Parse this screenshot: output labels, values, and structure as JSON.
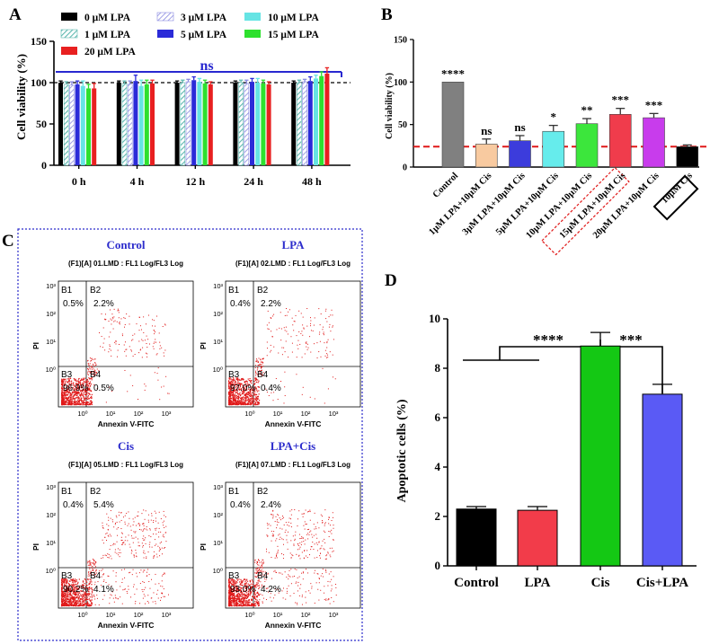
{
  "panels": {
    "A": {
      "letter": "A",
      "chart_data": {
        "type": "bar",
        "ylabel": "Cell viability (%)",
        "ylim": [
          0,
          150
        ],
        "yticks": [
          0,
          50,
          100,
          150
        ],
        "categories": [
          "0 h",
          "4 h",
          "12 h",
          "24 h",
          "48 h"
        ],
        "annotation": "ns",
        "reference_line": 100,
        "series": [
          {
            "name": "0 μM LPA",
            "color": "#000000",
            "pattern": "solid",
            "values": [
              100,
              100,
              100,
              100,
              100
            ],
            "errors": [
              2,
              2,
              2,
              2,
              2
            ]
          },
          {
            "name": "1 μM LPA",
            "color": "#5fb8b0",
            "pattern": "hatch",
            "values": [
              98,
              99,
              100,
              100,
              100
            ],
            "errors": [
              3,
              3,
              3,
              3,
              3
            ]
          },
          {
            "name": "3 μM LPA",
            "color": "#8a8ae0",
            "pattern": "hatch",
            "values": [
              97,
              98,
              101,
              99,
              101
            ],
            "errors": [
              4,
              4,
              3,
              4,
              3
            ]
          },
          {
            "name": "5 μM LPA",
            "color": "#2b2bd8",
            "pattern": "solid",
            "values": [
              98,
              102,
              103,
              101,
              102
            ],
            "errors": [
              4,
              7,
              4,
              4,
              5
            ]
          },
          {
            "name": "10 μM LPA",
            "color": "#66e4e4",
            "pattern": "solid",
            "values": [
              96,
              96,
              101,
              100,
              105
            ],
            "errors": [
              6,
              7,
              4,
              5,
              4
            ]
          },
          {
            "name": "15 μM LPA",
            "color": "#2ee02e",
            "pattern": "solid",
            "values": [
              93,
              98,
              99,
              99,
              108
            ],
            "errors": [
              5,
              5,
              4,
              4,
              5
            ]
          },
          {
            "name": "20 μM LPA",
            "color": "#e82020",
            "pattern": "solid",
            "values": [
              93,
              99,
              98,
              98,
              111
            ],
            "errors": [
              6,
              4,
              3,
              3,
              7
            ]
          }
        ]
      }
    },
    "B": {
      "letter": "B",
      "chart_data": {
        "type": "bar",
        "ylabel": "Cell viability (%)",
        "ylim": [
          0,
          150
        ],
        "yticks": [
          0,
          50,
          100,
          150
        ],
        "reference_line": 24,
        "categories": [
          "Control",
          "1μM LPA+10μM Cis",
          "3μM LPA+10μM Cis",
          "5μM LPA+10μM Cis",
          "10μM LPA+10μM Cis",
          "15μM LPA+10μM Cis",
          "20μM LPA+10μM Cis",
          "10μM Cis"
        ],
        "values": [
          100,
          27,
          31,
          42,
          51,
          62,
          58,
          24
        ],
        "errors": [
          0,
          6,
          6,
          7,
          6,
          7,
          5,
          2
        ],
        "colors": [
          "#808080",
          "#f8caa0",
          "#3c3cdc",
          "#66ecec",
          "#3ce63c",
          "#f03c4c",
          "#c83cec",
          "#000000"
        ],
        "significance": [
          "****",
          "ns",
          "ns",
          "*",
          "**",
          "***",
          "***",
          ""
        ]
      }
    },
    "C": {
      "letter": "C",
      "xlabel": "Annexin V-FITC",
      "ylabel": "PI",
      "tick_labels": [
        "10⁰",
        "10¹",
        "10²",
        "10³"
      ],
      "plots": [
        {
          "title": "Control",
          "file": "(F1)[A] 01.LMD : FL1 Log/FL3 Log",
          "q": [
            "B1",
            "B2",
            "B3",
            "B4"
          ],
          "pct": [
            "0.5%",
            "2.2%",
            "96.9%",
            "0.5%"
          ]
        },
        {
          "title": "LPA",
          "file": "(F1)[A] 02.LMD : FL1 Log/FL3 Log",
          "q": [
            "B1",
            "B2",
            "B3",
            "B4"
          ],
          "pct": [
            "0.4%",
            "2.2%",
            "97.0%",
            "0.4%"
          ]
        },
        {
          "title": "Cis",
          "file": "(F1)[A] 05.LMD : FL1 Log/FL3 Log",
          "q": [
            "B1",
            "B2",
            "B3",
            "B4"
          ],
          "pct": [
            "0.4%",
            "5.4%",
            "90.2%",
            "4.1%"
          ]
        },
        {
          "title": "LPA+Cis",
          "file": "(F1)[A] 07.LMD : FL1 Log/FL3 Log",
          "q": [
            "B1",
            "B2",
            "B3",
            "B4"
          ],
          "pct": [
            "0.4%",
            "2.4%",
            "93.0%",
            "4.2%"
          ]
        }
      ]
    },
    "D": {
      "letter": "D",
      "chart_data": {
        "type": "bar",
        "ylabel": "Apoptotic cells (%)",
        "ylim": [
          0,
          10
        ],
        "yticks": [
          0,
          2,
          4,
          6,
          8,
          10
        ],
        "categories": [
          "Control",
          "LPA",
          "Cis",
          "Cis+LPA"
        ],
        "values": [
          2.3,
          2.25,
          8.9,
          6.95
        ],
        "errors": [
          0.1,
          0.15,
          0.55,
          0.4
        ],
        "colors": [
          "#000000",
          "#f23c4a",
          "#14c814",
          "#5a5af5"
        ],
        "significance": [
          "****",
          "***"
        ]
      }
    }
  }
}
